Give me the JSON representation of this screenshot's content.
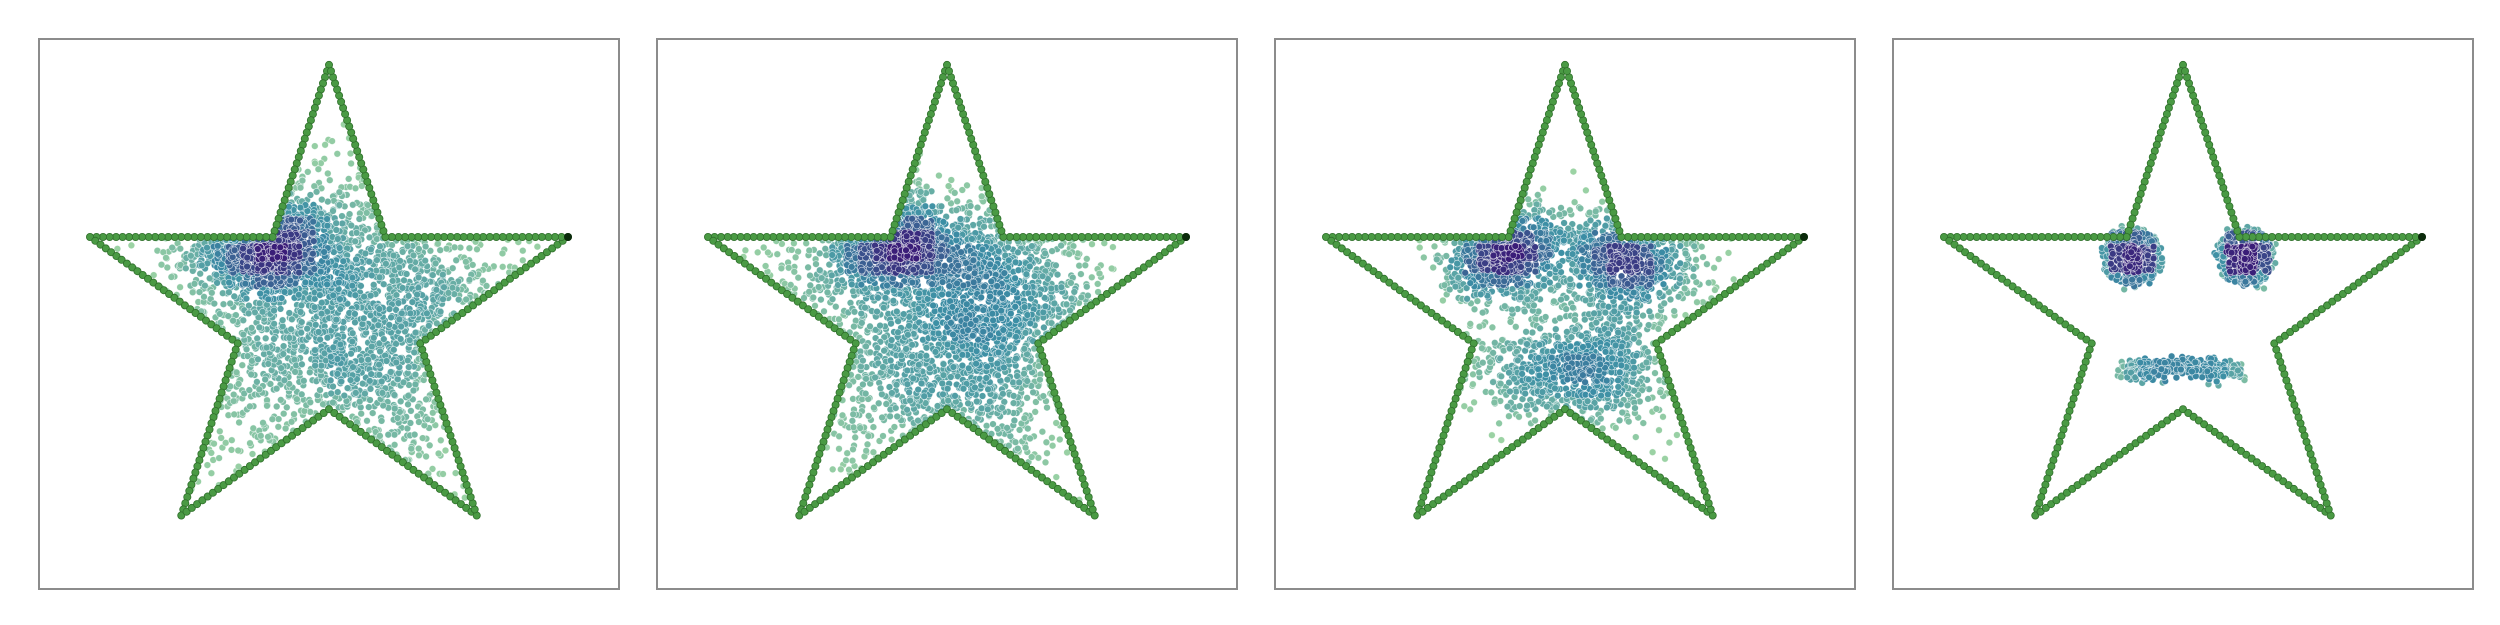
{
  "style": {
    "frame_color": "#8c8c8c",
    "outline_color": "#4a9a44",
    "outline_edge": "#2f6f2b",
    "tip_color": "#0b2a0b",
    "density_low": "#9fd5a4",
    "density_mid": "#3b8ea5",
    "density_high": "#3a1d78"
  },
  "chart_data": [
    {
      "type": "scatter",
      "panel": 1,
      "title": "",
      "xlabel": "",
      "ylabel": "",
      "grid": false,
      "xlim": [
        -1.15,
        1.15
      ],
      "ylim": [
        -1.1,
        1.1
      ],
      "outline": {
        "shape": "star",
        "points": 5,
        "outer_radius": 1.0,
        "inner_radius": 0.382,
        "samples_per_edge": 28
      },
      "clusters": [
        {
          "center": [
            -0.25,
            0.28
          ],
          "spread": [
            0.14,
            0.1
          ],
          "count": 900
        },
        {
          "center": [
            0.2,
            0.0
          ],
          "spread": [
            0.32,
            0.32
          ],
          "count": 1300
        },
        {
          "center": [
            -0.15,
            -0.15
          ],
          "spread": [
            0.4,
            0.35
          ],
          "count": 700
        }
      ]
    },
    {
      "type": "scatter",
      "panel": 2,
      "title": "",
      "xlabel": "",
      "ylabel": "",
      "grid": false,
      "xlim": [
        -1.15,
        1.15
      ],
      "ylim": [
        -1.1,
        1.1
      ],
      "outline": {
        "shape": "star",
        "points": 5,
        "outer_radius": 1.0,
        "inner_radius": 0.382,
        "samples_per_edge": 28
      },
      "clusters": [
        {
          "center": [
            -0.22,
            0.28
          ],
          "spread": [
            0.14,
            0.1
          ],
          "count": 800
        },
        {
          "center": [
            0.2,
            0.12
          ],
          "spread": [
            0.22,
            0.18
          ],
          "count": 900
        },
        {
          "center": [
            0.05,
            -0.28
          ],
          "spread": [
            0.25,
            0.2
          ],
          "count": 700
        },
        {
          "center": [
            -0.2,
            -0.05
          ],
          "spread": [
            0.35,
            0.3
          ],
          "count": 500
        }
      ]
    },
    {
      "type": "scatter",
      "panel": 3,
      "title": "",
      "xlabel": "",
      "ylabel": "",
      "grid": false,
      "xlim": [
        -1.15,
        1.15
      ],
      "ylim": [
        -1.1,
        1.1
      ],
      "outline": {
        "shape": "star",
        "points": 5,
        "outer_radius": 1.0,
        "inner_radius": 0.382,
        "samples_per_edge": 28
      },
      "clusters": [
        {
          "center": [
            -0.25,
            0.25
          ],
          "spread": [
            0.12,
            0.1
          ],
          "count": 750
        },
        {
          "center": [
            0.25,
            0.22
          ],
          "spread": [
            0.14,
            0.12
          ],
          "count": 800
        },
        {
          "center": [
            0.05,
            -0.22
          ],
          "spread": [
            0.22,
            0.12
          ],
          "count": 800
        }
      ]
    },
    {
      "type": "scatter",
      "panel": 4,
      "title": "",
      "xlabel": "",
      "ylabel": "",
      "grid": false,
      "xlim": [
        -1.15,
        1.15
      ],
      "ylim": [
        -1.1,
        1.1
      ],
      "outline": {
        "shape": "star",
        "points": 5,
        "outer_radius": 1.0,
        "inner_radius": 0.382,
        "samples_per_edge": 28
      },
      "eyes": [
        {
          "center": [
            -0.2,
            0.23
          ],
          "ring_radius": 0.1,
          "core_spread": 0.035,
          "count": 500
        },
        {
          "center": [
            0.25,
            0.23
          ],
          "ring_radius": 0.1,
          "core_spread": 0.035,
          "count": 500
        }
      ],
      "smile": {
        "x_range": [
          -0.22,
          0.22
        ],
        "center_y": -0.18,
        "curve": 0.45,
        "spread": 0.02,
        "count": 420
      }
    }
  ]
}
